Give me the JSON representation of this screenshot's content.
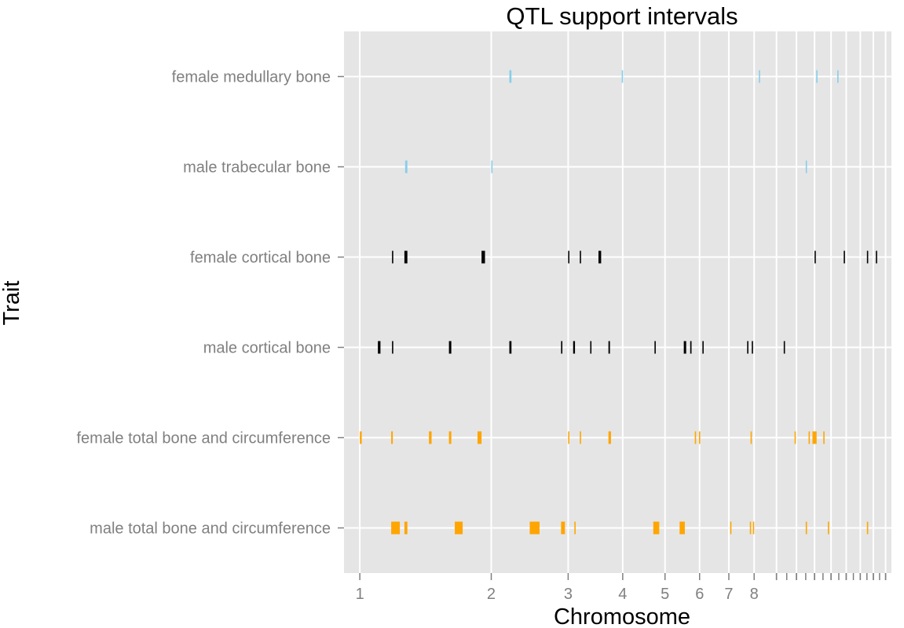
{
  "chart_data": {
    "type": "interval",
    "title": "QTL support intervals",
    "xlabel": "Chromosome",
    "ylabel": "Trait",
    "x_scale": "chromosome (widths shrink with chromosome number)",
    "x_ticks": [
      "1",
      "2",
      "3",
      "4",
      "5",
      "6",
      "7",
      "8"
    ],
    "grid": true,
    "traits": [
      "female medullary bone",
      "male trabecular bone",
      "female cortical bone",
      "male cortical bone",
      "female total bone and circumference",
      "male total bone and circumference"
    ],
    "colors": {
      "panel": "#e5e5e5",
      "grid": "#ffffff",
      "tick_text": "#808080",
      "medullary_trabecular": "#87ceeb",
      "cortical": "#000000",
      "total": "#ffa500"
    },
    "series": [
      {
        "trait": "female medullary bone",
        "color": "#87ceeb",
        "intervals": [
          [
            2.2,
            2.225
          ],
          [
            3.98,
            3.99
          ],
          [
            8.2,
            8.23
          ],
          [
            11.1,
            11.15
          ],
          [
            12.4,
            12.43
          ]
        ]
      },
      {
        "trait": "male trabecular bone",
        "color": "#87ceeb",
        "intervals": [
          [
            1.27,
            1.285
          ],
          [
            2.0,
            2.005
          ],
          [
            10.5,
            10.52
          ]
        ]
      },
      {
        "trait": "female cortical bone",
        "color": "#000000",
        "intervals": [
          [
            1.185,
            1.19
          ],
          [
            1.265,
            1.285
          ],
          [
            1.9,
            1.935
          ],
          [
            3.0,
            3.005
          ],
          [
            3.19,
            3.21
          ],
          [
            3.52,
            3.57
          ],
          [
            11.0,
            11.03
          ],
          [
            12.83,
            12.85
          ],
          [
            14.5,
            14.52
          ],
          [
            15.2,
            15.22
          ]
        ]
      },
      {
        "trait": "male cortical bone",
        "color": "#000000",
        "intervals": [
          [
            1.1,
            1.115
          ],
          [
            1.185,
            1.19
          ],
          [
            1.6,
            1.62
          ],
          [
            2.2,
            2.225
          ],
          [
            2.89,
            2.91
          ],
          [
            3.08,
            3.11
          ],
          [
            3.37,
            3.38
          ],
          [
            3.71,
            3.74
          ],
          [
            4.73,
            4.75
          ],
          [
            5.52,
            5.59
          ],
          [
            5.71,
            5.75
          ],
          [
            6.09,
            6.12
          ],
          [
            7.71,
            7.76
          ],
          [
            7.9,
            7.93
          ],
          [
            9.35,
            9.38
          ]
        ]
      },
      {
        "trait": "female total bone and circumference",
        "color": "#ffa500",
        "intervals": [
          [
            1.0,
            1.01
          ],
          [
            1.18,
            1.19
          ],
          [
            1.44,
            1.46
          ],
          [
            1.6,
            1.62
          ],
          [
            1.86,
            1.9
          ],
          [
            3.0,
            3.005
          ],
          [
            3.19,
            3.21
          ],
          [
            3.71,
            3.76
          ],
          [
            5.85,
            5.89
          ],
          [
            5.98,
            6.0
          ],
          [
            7.85,
            7.88
          ],
          [
            9.9,
            9.93
          ],
          [
            10.66,
            10.7
          ],
          [
            10.88,
            11.12
          ],
          [
            11.52,
            11.58
          ]
        ]
      },
      {
        "trait": "male total bone and circumference",
        "color": "#ffa500",
        "intervals": [
          [
            1.18,
            1.235
          ],
          [
            1.265,
            1.285
          ],
          [
            1.65,
            1.72
          ],
          [
            2.45,
            2.58
          ],
          [
            2.89,
            2.95
          ],
          [
            3.1,
            3.105
          ],
          [
            4.7,
            4.85
          ],
          [
            5.4,
            5.55
          ],
          [
            7.05,
            7.08
          ],
          [
            7.82,
            7.86
          ],
          [
            7.95,
            7.99
          ],
          [
            10.5,
            10.52
          ],
          [
            11.8,
            11.83
          ],
          [
            14.5,
            14.55
          ]
        ]
      }
    ]
  }
}
